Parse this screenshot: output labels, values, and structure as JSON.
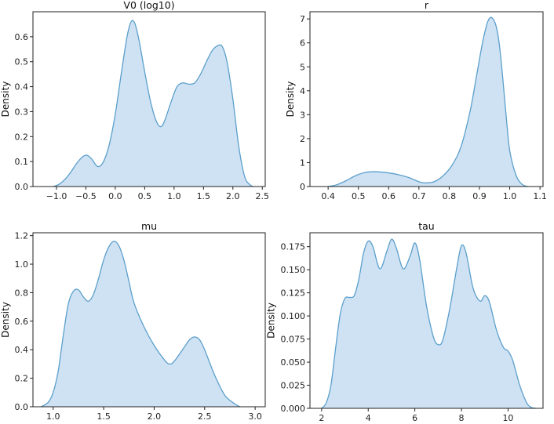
{
  "colors": {
    "fill": "#cfe2f3",
    "line": "#5b9fcb",
    "axis": "#222222"
  },
  "chart_data": [
    {
      "type": "area",
      "title": "V0 (log10)",
      "ylabel": "Density",
      "xlim": [
        -1.4,
        2.55
      ],
      "ylim": [
        0,
        0.7
      ],
      "xticks": [
        -1.0,
        -0.5,
        0.0,
        0.5,
        1.0,
        1.5,
        2.0,
        2.5
      ],
      "xtick_labels": [
        "−1.0",
        "−0.5",
        "0.0",
        "0.5",
        "1.0",
        "1.5",
        "2.0",
        "2.5"
      ],
      "yticks": [
        0.0,
        0.1,
        0.2,
        0.3,
        0.4,
        0.5,
        0.6
      ],
      "ytick_labels": [
        "0.0",
        "0.1",
        "0.2",
        "0.3",
        "0.4",
        "0.5",
        "0.6"
      ],
      "x": [
        -1.05,
        -0.95,
        -0.85,
        -0.75,
        -0.65,
        -0.55,
        -0.48,
        -0.4,
        -0.3,
        -0.2,
        -0.1,
        0.0,
        0.1,
        0.2,
        0.27,
        0.33,
        0.4,
        0.5,
        0.6,
        0.7,
        0.78,
        0.85,
        0.95,
        1.05,
        1.15,
        1.25,
        1.35,
        1.45,
        1.55,
        1.65,
        1.75,
        1.82,
        1.9,
        2.0,
        2.1,
        2.2,
        2.3,
        2.35
      ],
      "y": [
        0.0,
        0.01,
        0.03,
        0.06,
        0.095,
        0.12,
        0.125,
        0.11,
        0.08,
        0.1,
        0.17,
        0.29,
        0.45,
        0.6,
        0.66,
        0.655,
        0.59,
        0.46,
        0.34,
        0.26,
        0.24,
        0.27,
        0.34,
        0.4,
        0.415,
        0.41,
        0.415,
        0.45,
        0.5,
        0.545,
        0.565,
        0.56,
        0.5,
        0.35,
        0.16,
        0.04,
        0.005,
        0.0
      ]
    },
    {
      "type": "area",
      "title": "r",
      "ylabel": "Density",
      "xlim": [
        0.34,
        1.11
      ],
      "ylim": [
        0,
        7.3
      ],
      "xticks": [
        0.4,
        0.5,
        0.6,
        0.7,
        0.8,
        0.9,
        1.0,
        1.1
      ],
      "xtick_labels": [
        "0.4",
        "0.5",
        "0.6",
        "0.7",
        "0.8",
        "0.9",
        "1.0",
        "1.1"
      ],
      "yticks": [
        0,
        1,
        2,
        3,
        4,
        5,
        6,
        7
      ],
      "ytick_labels": [
        "0",
        "1",
        "2",
        "3",
        "4",
        "5",
        "6",
        "7"
      ],
      "x": [
        0.4,
        0.43,
        0.46,
        0.49,
        0.52,
        0.55,
        0.58,
        0.61,
        0.64,
        0.67,
        0.7,
        0.72,
        0.75,
        0.78,
        0.81,
        0.84,
        0.87,
        0.89,
        0.91,
        0.925,
        0.935,
        0.945,
        0.955,
        0.965,
        0.975,
        0.99,
        1.0,
        1.02,
        1.04,
        1.06
      ],
      "y": [
        0.0,
        0.08,
        0.25,
        0.45,
        0.58,
        0.62,
        0.6,
        0.55,
        0.47,
        0.36,
        0.2,
        0.15,
        0.2,
        0.45,
        0.9,
        1.7,
        3.2,
        4.6,
        6.0,
        6.8,
        7.05,
        7.0,
        6.7,
        6.0,
        4.8,
        2.7,
        1.5,
        0.5,
        0.1,
        0.0
      ]
    },
    {
      "type": "area",
      "title": "mu",
      "ylabel": "Density",
      "xlim": [
        0.8,
        3.1
      ],
      "ylim": [
        0,
        1.22
      ],
      "xticks": [
        1.0,
        1.5,
        2.0,
        2.5,
        3.0
      ],
      "xtick_labels": [
        "1.0",
        "1.5",
        "2.0",
        "2.5",
        "3.0"
      ],
      "yticks": [
        0.0,
        0.2,
        0.4,
        0.6,
        0.8,
        1.0,
        1.2
      ],
      "ytick_labels": [
        "0.0",
        "0.2",
        "0.4",
        "0.6",
        "0.8",
        "1.0",
        "1.2"
      ],
      "x": [
        0.88,
        0.95,
        1.0,
        1.05,
        1.1,
        1.15,
        1.2,
        1.25,
        1.3,
        1.35,
        1.4,
        1.45,
        1.5,
        1.55,
        1.6,
        1.65,
        1.7,
        1.75,
        1.8,
        1.9,
        2.0,
        2.1,
        2.15,
        2.2,
        2.3,
        2.35,
        2.4,
        2.45,
        2.5,
        2.6,
        2.7,
        2.8,
        2.85
      ],
      "y": [
        0.0,
        0.03,
        0.1,
        0.25,
        0.5,
        0.72,
        0.81,
        0.82,
        0.77,
        0.74,
        0.79,
        0.9,
        1.03,
        1.12,
        1.16,
        1.13,
        1.03,
        0.88,
        0.73,
        0.56,
        0.43,
        0.33,
        0.3,
        0.32,
        0.42,
        0.47,
        0.49,
        0.47,
        0.4,
        0.22,
        0.08,
        0.02,
        0.0
      ]
    },
    {
      "type": "area",
      "title": "tau",
      "ylabel": "Density",
      "xlim": [
        1.5,
        11.5
      ],
      "ylim": [
        0,
        0.19
      ],
      "xticks": [
        2,
        4,
        6,
        8,
        10
      ],
      "xtick_labels": [
        "2",
        "4",
        "6",
        "8",
        "10"
      ],
      "yticks": [
        0.0,
        0.025,
        0.05,
        0.075,
        0.1,
        0.125,
        0.15,
        0.175
      ],
      "ytick_labels": [
        "0.000",
        "0.025",
        "0.050",
        "0.075",
        "0.100",
        "0.125",
        "0.150",
        "0.175"
      ],
      "x": [
        2.0,
        2.2,
        2.4,
        2.6,
        2.8,
        3.0,
        3.2,
        3.4,
        3.6,
        3.8,
        4.0,
        4.2,
        4.5,
        4.8,
        5.0,
        5.2,
        5.5,
        5.8,
        6.0,
        6.2,
        6.5,
        6.8,
        7.0,
        7.2,
        7.5,
        7.8,
        8.0,
        8.2,
        8.5,
        8.8,
        9.0,
        9.2,
        9.5,
        9.8,
        10.0,
        10.2,
        10.5,
        10.8,
        11.0,
        11.2
      ],
      "y": [
        0.0,
        0.006,
        0.025,
        0.065,
        0.102,
        0.119,
        0.12,
        0.122,
        0.14,
        0.168,
        0.181,
        0.175,
        0.151,
        0.17,
        0.183,
        0.174,
        0.151,
        0.165,
        0.179,
        0.162,
        0.111,
        0.077,
        0.069,
        0.074,
        0.108,
        0.152,
        0.176,
        0.168,
        0.13,
        0.116,
        0.122,
        0.115,
        0.085,
        0.066,
        0.062,
        0.052,
        0.025,
        0.006,
        0.001,
        0.0
      ]
    }
  ]
}
